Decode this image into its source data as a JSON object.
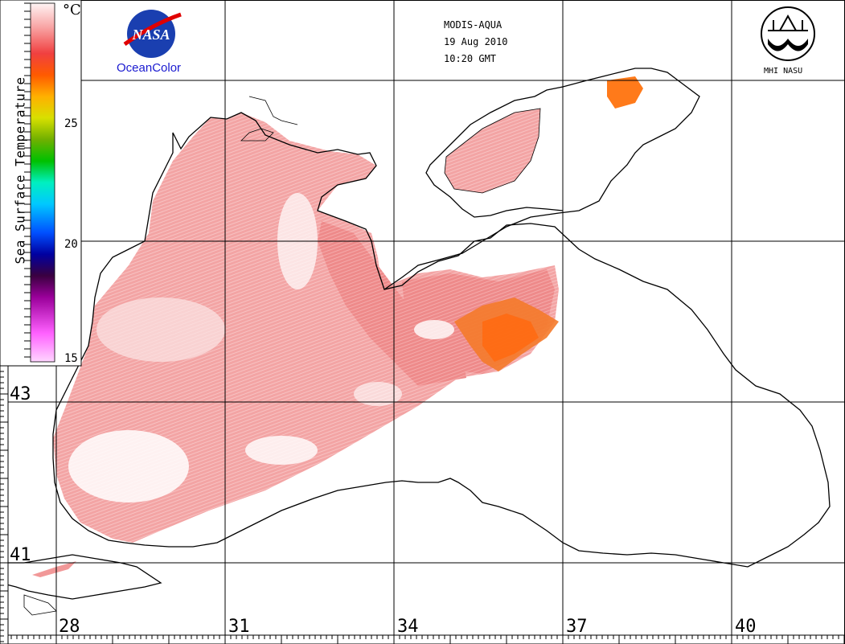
{
  "header": {
    "sensor": "MODIS-AQUA",
    "date": "19 Aug 2010",
    "time": "10:20 GMT"
  },
  "logos": {
    "nasa_text": "NASA",
    "oceancolor": "OceanColor",
    "mhi": "MHI NASU"
  },
  "colorbar": {
    "title": "Sea Surface Temperature",
    "unit": "°C",
    "ticks": [
      "25",
      "20",
      "15"
    ],
    "range": [
      15,
      30
    ],
    "colors": [
      "#ff9cf0",
      "#e060e0",
      "#8a008a",
      "#3a0050",
      "#0000ff",
      "#00a0ff",
      "#00e8e8",
      "#00c080",
      "#40c000",
      "#a0c000",
      "#e8e800",
      "#ffa000",
      "#ff6000",
      "#ff4040",
      "#ffa0a0",
      "#fff0f0"
    ]
  },
  "axes": {
    "latitudes": [
      "43",
      "41"
    ],
    "longitudes": [
      "28",
      "31",
      "34",
      "37",
      "40"
    ]
  },
  "palette": {
    "sst_warm": "#ef7c7c",
    "sst_light": "#f6b6b6",
    "sst_hot": "#ff6a1a",
    "coast": "#000000",
    "grid": "#000000"
  }
}
